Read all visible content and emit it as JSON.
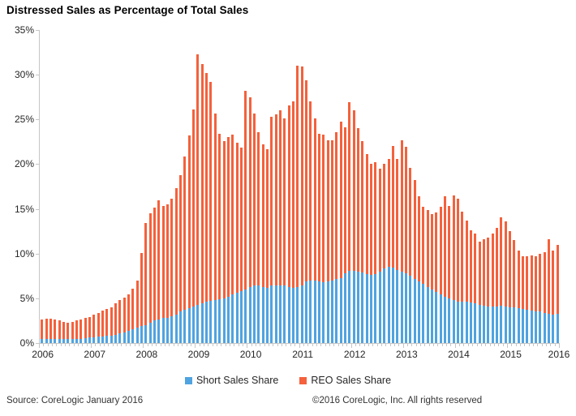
{
  "title": "Distressed Sales as Percentage of Total Sales",
  "legend": {
    "short_label": "Short Sales Share",
    "reo_label": "REO Sales Share"
  },
  "footer": {
    "source": "Source: CoreLogic January 2016",
    "copyright": "©2016 CoreLogic, Inc. All rights reserved"
  },
  "colors": {
    "short": "#4fa3e0",
    "reo": "#f4613c",
    "axis": "#c6c6c6",
    "label_text": "#262626"
  },
  "y_axis": {
    "tick_labels": [
      "0%",
      "5%",
      "10%",
      "15%",
      "20%",
      "25%",
      "30%",
      "35%"
    ],
    "max": 35
  },
  "x_axis": {
    "year_labels": [
      "2006",
      "2007",
      "2008",
      "2009",
      "2010",
      "2011",
      "2012",
      "2013",
      "2014",
      "2015",
      "2016"
    ]
  },
  "chart_data": {
    "type": "bar",
    "stacked": true,
    "unit": "percent of total home sales",
    "frequency": "monthly",
    "start": "2006-01",
    "end": "2015-12",
    "months": 120,
    "title": "Distressed Sales as Percentage of Total Sales",
    "xlabel": "",
    "ylabel": "",
    "ylim": [
      0,
      35
    ],
    "grid": false,
    "legend_position": "bottom",
    "series": [
      {
        "name": "Short Sales Share",
        "color": "#4fa3e0",
        "values": [
          0.5,
          0.5,
          0.5,
          0.5,
          0.45,
          0.45,
          0.45,
          0.45,
          0.5,
          0.5,
          0.55,
          0.6,
          0.65,
          0.7,
          0.75,
          0.8,
          0.85,
          0.95,
          1.05,
          1.2,
          1.35,
          1.5,
          1.7,
          1.9,
          2.0,
          2.3,
          2.5,
          2.6,
          2.8,
          2.8,
          3.0,
          3.2,
          3.5,
          3.7,
          3.9,
          4.1,
          4.3,
          4.4,
          4.6,
          4.7,
          4.8,
          4.9,
          5.0,
          5.2,
          5.4,
          5.6,
          5.8,
          6.0,
          6.3,
          6.4,
          6.4,
          6.3,
          6.2,
          6.4,
          6.4,
          6.4,
          6.4,
          6.3,
          6.2,
          6.3,
          6.4,
          6.9,
          7.0,
          7.0,
          6.9,
          6.8,
          6.9,
          7.0,
          7.2,
          7.3,
          7.8,
          8.1,
          8.1,
          8.0,
          7.9,
          7.7,
          7.6,
          7.7,
          8.0,
          8.3,
          8.5,
          8.4,
          8.2,
          8.0,
          7.8,
          7.5,
          7.2,
          6.9,
          6.6,
          6.3,
          6.0,
          5.7,
          5.4,
          5.2,
          5.0,
          4.8,
          4.6,
          4.6,
          4.6,
          4.5,
          4.4,
          4.3,
          4.2,
          4.1,
          4.1,
          4.1,
          4.2,
          4.1,
          4.0,
          4.0,
          3.9,
          3.8,
          3.7,
          3.6,
          3.5,
          3.5,
          3.4,
          3.3,
          3.2,
          3.3
        ]
      },
      {
        "name": "REO Sales Share",
        "color": "#f4613c",
        "values": [
          2.1,
          2.25,
          2.2,
          2.1,
          2.05,
          1.9,
          1.85,
          1.95,
          2.0,
          2.1,
          2.25,
          2.3,
          2.55,
          2.7,
          2.85,
          3.0,
          3.15,
          3.45,
          3.75,
          3.9,
          4.05,
          4.6,
          5.3,
          8.2,
          11.4,
          12.2,
          12.6,
          13.4,
          12.5,
          12.7,
          13.1,
          14.1,
          15.3,
          17.2,
          19.3,
          22.0,
          28.0,
          26.8,
          25.6,
          24.5,
          20.9,
          18.5,
          17.6,
          17.8,
          17.9,
          16.8,
          16.1,
          22.2,
          21.2,
          19.3,
          17.2,
          15.9,
          15.5,
          18.9,
          19.2,
          19.6,
          18.7,
          20.3,
          20.8,
          24.7,
          24.5,
          22.5,
          20.0,
          18.1,
          16.5,
          16.5,
          15.8,
          15.7,
          16.4,
          17.5,
          16.3,
          18.8,
          17.9,
          16.0,
          14.7,
          13.4,
          12.4,
          12.5,
          11.5,
          11.7,
          12.1,
          13.6,
          12.4,
          14.7,
          14.1,
          12.1,
          11.0,
          9.5,
          8.6,
          8.6,
          8.4,
          8.9,
          9.8,
          11.2,
          10.3,
          11.7,
          11.5,
          10.1,
          9.1,
          8.1,
          7.8,
          7.0,
          7.4,
          7.7,
          8.1,
          8.8,
          9.9,
          9.5,
          8.5,
          7.5,
          6.4,
          5.9,
          6.0,
          6.2,
          6.2,
          6.5,
          6.8,
          8.3,
          7.1,
          7.7
        ]
      }
    ]
  }
}
